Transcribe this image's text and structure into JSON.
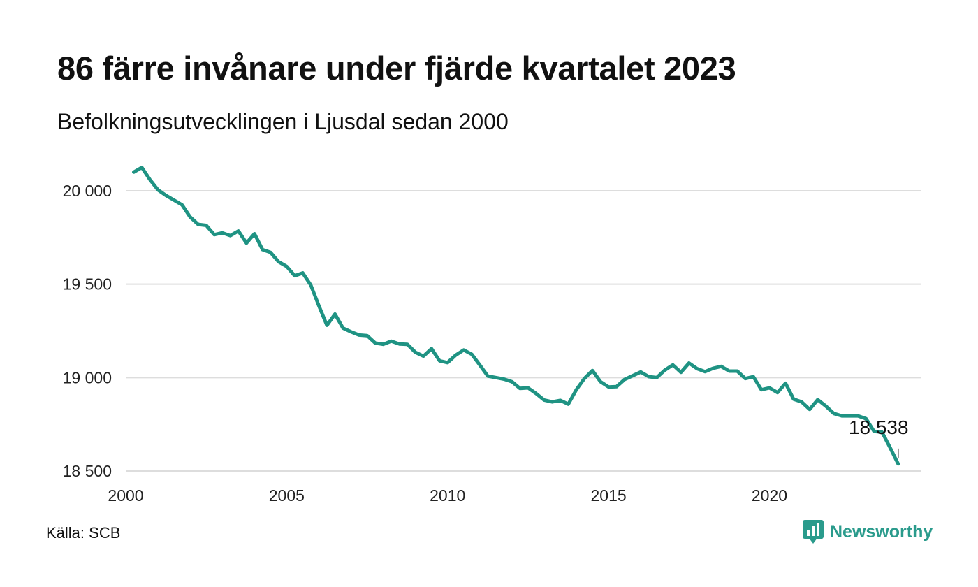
{
  "title": "86 färre invånare under fjärde kvartalet 2023",
  "subtitle": "Befolkningsutvecklingen i Ljusdal sedan 2000",
  "source": "Källa: SCB",
  "brand": "Newsworthy",
  "colors": {
    "line": "#1f9383",
    "grid": "#dddddd",
    "brand": "#2a9b8c"
  },
  "chart_data": {
    "type": "line",
    "title": "86 färre invånare under fjärde kvartalet 2023",
    "subtitle": "Befolkningsutvecklingen i Ljusdal sedan 2000",
    "xlabel": "",
    "ylabel": "",
    "x_ticks": [
      2000,
      2005,
      2010,
      2015,
      2020
    ],
    "y_ticks": [
      18500,
      19000,
      19500,
      20000
    ],
    "y_tick_labels": [
      "18 500",
      "19 000",
      "19 500",
      "20 000"
    ],
    "xlim": [
      2000,
      2024.5
    ],
    "ylim": [
      18500,
      20150
    ],
    "grid": "horizontal",
    "end_label": "18 538",
    "series": [
      {
        "x": [
          2000.25,
          2000.5,
          2000.75,
          2001.0,
          2001.25,
          2001.5,
          2001.75,
          2002.0,
          2002.25,
          2002.5,
          2002.75,
          2003.0,
          2003.25,
          2003.5,
          2003.75,
          2004.0,
          2004.25,
          2004.5,
          2004.75,
          2005.0,
          2005.25,
          2005.5,
          2005.75,
          2006.0,
          2006.25,
          2006.5,
          2006.75,
          2007.0,
          2007.25,
          2007.5,
          2007.75,
          2008.0,
          2008.25,
          2008.5,
          2008.75,
          2009.0,
          2009.25,
          2009.5,
          2009.75,
          2010.0,
          2010.25,
          2010.5,
          2010.75,
          2011.0,
          2011.25,
          2011.5,
          2011.75,
          2012.0,
          2012.25,
          2012.5,
          2012.75,
          2013.0,
          2013.25,
          2013.5,
          2013.75,
          2014.0,
          2014.25,
          2014.5,
          2014.75,
          2015.0,
          2015.25,
          2015.5,
          2015.75,
          2016.0,
          2016.25,
          2016.5,
          2016.75,
          2017.0,
          2017.25,
          2017.5,
          2017.75,
          2018.0,
          2018.25,
          2018.5,
          2018.75,
          2019.0,
          2019.25,
          2019.5,
          2019.75,
          2020.0,
          2020.25,
          2020.5,
          2020.75,
          2021.0,
          2021.25,
          2021.5,
          2021.75,
          2022.0,
          2022.25,
          2022.5,
          2022.75,
          2023.0,
          2023.25,
          2023.5,
          2023.75,
          2024.0
        ],
        "values": [
          20100,
          20125,
          20060,
          20005,
          19975,
          19950,
          19925,
          19860,
          19820,
          19815,
          19765,
          19775,
          19760,
          19785,
          19720,
          19770,
          19685,
          19670,
          19620,
          19595,
          19545,
          19560,
          19495,
          19385,
          19280,
          19340,
          19265,
          19245,
          19228,
          19225,
          19185,
          19178,
          19195,
          19180,
          19178,
          19135,
          19115,
          19155,
          19090,
          19080,
          19120,
          19148,
          19125,
          19068,
          19008,
          19000,
          18992,
          18978,
          18942,
          18945,
          18915,
          18880,
          18870,
          18878,
          18858,
          18935,
          18995,
          19038,
          18978,
          18950,
          18952,
          18990,
          19010,
          19030,
          19005,
          19000,
          19040,
          19068,
          19028,
          19078,
          19048,
          19032,
          19050,
          19060,
          19035,
          19035,
          18995,
          19005,
          18935,
          18945,
          18920,
          18970,
          18885,
          18870,
          18830,
          18882,
          18848,
          18808,
          18795,
          18795,
          18795,
          18780,
          18712,
          18708,
          18625,
          18538
        ]
      }
    ]
  }
}
